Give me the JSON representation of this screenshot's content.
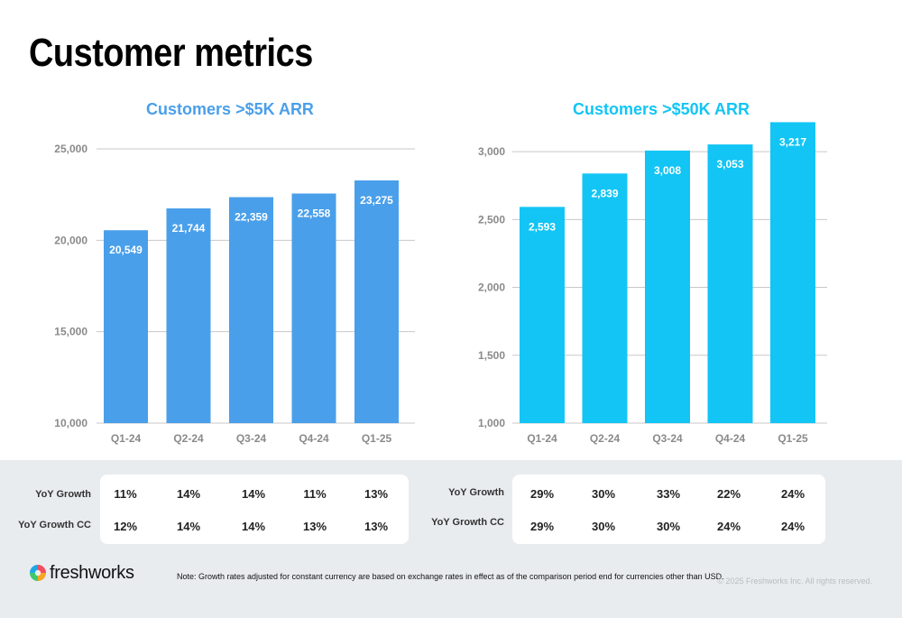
{
  "page": {
    "title": "Customer metrics"
  },
  "colors": {
    "left_bars": "#4a9fea",
    "right_bars": "#12c5f5",
    "band": "#e9ecef"
  },
  "chart_data": [
    {
      "type": "bar",
      "title": "Customers >$5K ARR",
      "categories": [
        "Q1-24",
        "Q2-24",
        "Q3-24",
        "Q4-24",
        "Q1-25"
      ],
      "values": [
        20549,
        21744,
        22359,
        22558,
        23275
      ],
      "value_labels": [
        "20,549",
        "21,744",
        "22,359",
        "22,558",
        "23,275"
      ],
      "ylim": [
        10000,
        25000
      ],
      "yticks": [
        10000,
        15000,
        20000,
        25000
      ],
      "ytick_labels": [
        "10,000",
        "15,000",
        "20,000",
        "25,000"
      ],
      "xlabel": "",
      "ylabel": "",
      "grid": true,
      "color": "#4a9fea"
    },
    {
      "type": "bar",
      "title": "Customers >$50K ARR",
      "categories": [
        "Q1-24",
        "Q2-24",
        "Q3-24",
        "Q4-24",
        "Q1-25"
      ],
      "values": [
        2593,
        2839,
        3008,
        3053,
        3217
      ],
      "value_labels": [
        "2,593",
        "2,839",
        "3,008",
        "3,053",
        "3,217"
      ],
      "ylim": [
        1000,
        3200
      ],
      "yticks": [
        1000,
        1500,
        2000,
        2500,
        3000
      ],
      "ytick_labels": [
        "1,000",
        "1,500",
        "2,000",
        "2,500",
        "3,000"
      ],
      "xlabel": "",
      "ylabel": "",
      "grid": true,
      "color": "#12c5f5"
    }
  ],
  "growth_tables": [
    {
      "rows": [
        {
          "label": "YoY Growth",
          "values": [
            "11%",
            "14%",
            "14%",
            "11%",
            "13%"
          ]
        },
        {
          "label": "YoY Growth CC",
          "values": [
            "12%",
            "14%",
            "14%",
            "13%",
            "13%"
          ]
        }
      ]
    },
    {
      "rows": [
        {
          "label": "YoY Growth",
          "values": [
            "29%",
            "30%",
            "33%",
            "22%",
            "24%"
          ]
        },
        {
          "label": "YoY Growth CC",
          "values": [
            "29%",
            "30%",
            "30%",
            "24%",
            "24%"
          ]
        }
      ]
    }
  ],
  "footer": {
    "logo_text": "freshworks",
    "note": "Note: Growth rates adjusted for constant currency are based on exchange rates in effect as of the comparison period end for currencies other than USD.",
    "copyright": "© 2025 Freshworks Inc. All rights reserved."
  }
}
